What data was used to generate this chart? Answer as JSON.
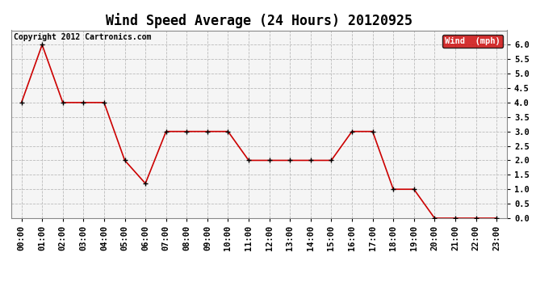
{
  "title": "Wind Speed Average (24 Hours) 20120925",
  "copyright": "Copyright 2012 Cartronics.com",
  "legend_label": "Wind  (mph)",
  "legend_bg": "#cc0000",
  "legend_text_color": "#ffffff",
  "x_labels": [
    "00:00",
    "01:00",
    "02:00",
    "03:00",
    "04:00",
    "05:00",
    "06:00",
    "07:00",
    "08:00",
    "09:00",
    "10:00",
    "11:00",
    "12:00",
    "13:00",
    "14:00",
    "15:00",
    "16:00",
    "17:00",
    "18:00",
    "19:00",
    "20:00",
    "21:00",
    "22:00",
    "23:00"
  ],
  "y_values": [
    4.0,
    6.0,
    4.0,
    4.0,
    4.0,
    2.0,
    1.2,
    3.0,
    3.0,
    3.0,
    3.0,
    2.0,
    2.0,
    2.0,
    2.0,
    2.0,
    3.0,
    3.0,
    1.0,
    1.0,
    0.0,
    0.0,
    0.0,
    0.0
  ],
  "line_color": "#cc0000",
  "marker_color": "#000000",
  "marker_size": 3,
  "ylim_min": 0,
  "ylim_max": 6.5,
  "y_ticks": [
    0.0,
    0.5,
    1.0,
    1.5,
    2.0,
    2.5,
    3.0,
    3.5,
    4.0,
    4.5,
    5.0,
    5.5,
    6.0
  ],
  "background_color": "#ffffff",
  "plot_bg_color": "#f5f5f5",
  "grid_color": "#bbbbbb",
  "title_fontsize": 12,
  "axis_label_fontsize": 7.5,
  "copyright_fontsize": 7
}
